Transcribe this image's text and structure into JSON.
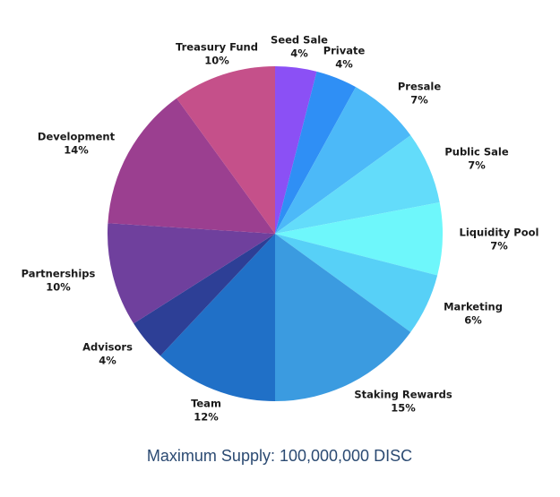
{
  "chart_data": {
    "type": "pie",
    "caption": "Maximum Supply: 100,000,000 DISC",
    "categories": [
      "Seed Sale",
      "Private",
      "Presale",
      "Public Sale",
      "Liquidity Pool",
      "Marketing",
      "Staking Rewards",
      "Team",
      "Advisors",
      "Partnerships",
      "Development",
      "Treasury Fund"
    ],
    "values": [
      4,
      4,
      7,
      7,
      7,
      6,
      15,
      12,
      4,
      10,
      14,
      10
    ],
    "value_labels": [
      "4%",
      "4%",
      "7%",
      "7%",
      "7%",
      "6%",
      "15%",
      "12%",
      "4%",
      "10%",
      "14%",
      "10%"
    ],
    "colors": [
      "#8b50f5",
      "#2f8ff5",
      "#4cb9f8",
      "#63dcfa",
      "#6ef7fb",
      "#57d0f7",
      "#3b9be0",
      "#2070c7",
      "#2d3f96",
      "#6f409d",
      "#9b3f90",
      "#c5508a"
    ]
  }
}
